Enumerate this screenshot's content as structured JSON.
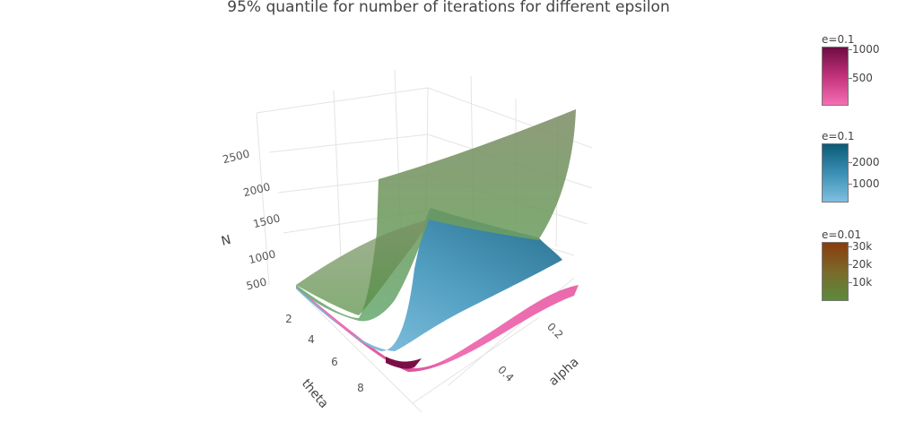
{
  "chart_data": {
    "type": "surface",
    "title": "95% quantile for number of iterations for different epsilon",
    "axes": {
      "z": {
        "label": "N",
        "ticks": [
          500,
          1000,
          1500,
          2000,
          2500
        ]
      },
      "theta": {
        "label": "theta",
        "ticks": [
          2,
          4,
          6,
          8
        ],
        "range": [
          1,
          10
        ]
      },
      "alpha": {
        "label": "alpha",
        "ticks": [
          0.2,
          0.4
        ],
        "range": [
          0.05,
          0.5
        ]
      }
    },
    "series": [
      {
        "name": "e=0.1",
        "colorscale": [
          "#f46fb2",
          "#c2327b",
          "#6f0c43"
        ],
        "colorbar_ticks": [
          "1000",
          "500"
        ],
        "theta_profile": [
          {
            "theta": 1,
            "N": 420
          },
          {
            "theta": 2,
            "N": 250
          },
          {
            "theta": 3,
            "N": 150
          },
          {
            "theta": 4,
            "N": 110
          },
          {
            "theta": 5,
            "N": 170
          },
          {
            "theta": 6,
            "N": 290
          },
          {
            "theta": 7,
            "N": 420
          },
          {
            "theta": 8,
            "N": 520
          },
          {
            "theta": 9,
            "N": 600
          }
        ],
        "alpha_profile": [
          {
            "alpha": 0.05,
            "N": 160
          },
          {
            "alpha": 0.1,
            "N": 140
          },
          {
            "alpha": 0.2,
            "N": 115
          },
          {
            "alpha": 0.3,
            "N": 100
          },
          {
            "alpha": 0.4,
            "N": 90
          },
          {
            "alpha": 0.5,
            "N": 85
          }
        ]
      },
      {
        "name": "e=0.1",
        "colorscale": [
          "#7fbfe0",
          "#3a8fb4",
          "#0b5a77"
        ],
        "colorbar_ticks": [
          "2000",
          "1000"
        ],
        "theta_profile": [
          {
            "theta": 1,
            "N": 420
          },
          {
            "theta": 2,
            "N": 300
          },
          {
            "theta": 3,
            "N": 230
          },
          {
            "theta": 4,
            "N": 210
          },
          {
            "theta": 5,
            "N": 360
          },
          {
            "theta": 6,
            "N": 620
          },
          {
            "theta": 7,
            "N": 880
          },
          {
            "theta": 8,
            "N": 1060
          },
          {
            "theta": 9,
            "N": 1180
          }
        ],
        "alpha_profile": [
          {
            "alpha": 0.05,
            "N": 460
          },
          {
            "alpha": 0.1,
            "N": 390
          },
          {
            "alpha": 0.2,
            "N": 300
          },
          {
            "alpha": 0.3,
            "N": 250
          },
          {
            "alpha": 0.4,
            "N": 220
          },
          {
            "alpha": 0.5,
            "N": 210
          }
        ]
      },
      {
        "name": "e=0.01",
        "colorscale": [
          "#5c8a3c",
          "#7a6a2a",
          "#8a3c0e"
        ],
        "colorbar_ticks": [
          "30k",
          "20k",
          "10k"
        ],
        "theta_profile": [
          {
            "theta": 1,
            "N": 480
          },
          {
            "theta": 2,
            "N": 420
          },
          {
            "theta": 3,
            "N": 360
          },
          {
            "theta": 4,
            "N": 320
          },
          {
            "theta": 5,
            "N": 1650
          },
          {
            "theta": 6,
            "N": 1900
          },
          {
            "theta": 7,
            "N": 2150
          },
          {
            "theta": 8,
            "N": 2400
          },
          {
            "theta": 9,
            "N": 2700
          }
        ],
        "alpha_profile": [
          {
            "alpha": 0.05,
            "N": 2700
          },
          {
            "alpha": 0.1,
            "N": 1900
          },
          {
            "alpha": 0.2,
            "N": 1300
          },
          {
            "alpha": 0.3,
            "N": 1100
          },
          {
            "alpha": 0.4,
            "N": 1000
          },
          {
            "alpha": 0.5,
            "N": 960
          }
        ]
      }
    ]
  }
}
